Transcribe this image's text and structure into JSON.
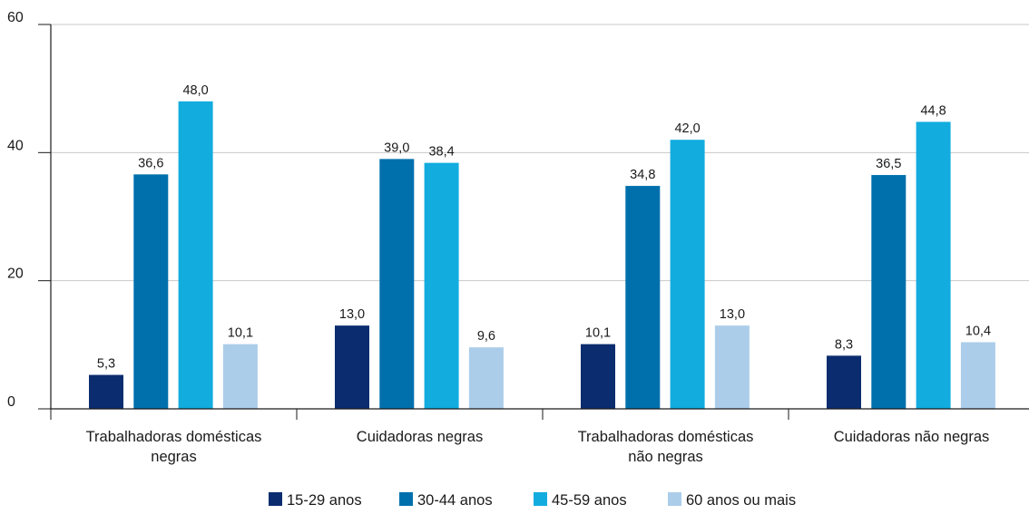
{
  "chart_data": {
    "type": "bar",
    "title": "",
    "xlabel": "",
    "ylabel": "",
    "ylim": [
      0,
      60
    ],
    "yticks": [
      0,
      20,
      40,
      60
    ],
    "grid": true,
    "legend_position": "bottom",
    "categories": [
      [
        "Trabalhadoras domésticas",
        "negras"
      ],
      [
        "Cuidadoras negras"
      ],
      [
        "Trabalhadoras domésticas",
        "não negras"
      ],
      [
        "Cuidadoras não negras"
      ]
    ],
    "series": [
      {
        "name": "15-29 anos",
        "color": "#0b2d6f",
        "values": [
          5.3,
          13.0,
          10.1,
          8.3
        ],
        "labels": [
          "5,3",
          "13,0",
          "10,1",
          "8,3"
        ]
      },
      {
        "name": "30-44 anos",
        "color": "#0070ad",
        "values": [
          36.6,
          39.0,
          34.8,
          36.5
        ],
        "labels": [
          "36,6",
          "39,0",
          "34,8",
          "36,5"
        ]
      },
      {
        "name": "45-59 anos",
        "color": "#12acdf",
        "values": [
          48.0,
          38.4,
          42.0,
          44.8
        ],
        "labels": [
          "48,0",
          "38,4",
          "42,0",
          "44,8"
        ]
      },
      {
        "name": "60 anos ou mais",
        "color": "#abcdea",
        "values": [
          10.1,
          9.6,
          13.0,
          10.4
        ],
        "labels": [
          "10,1",
          "9,6",
          "13,0",
          "10,4"
        ]
      }
    ]
  }
}
